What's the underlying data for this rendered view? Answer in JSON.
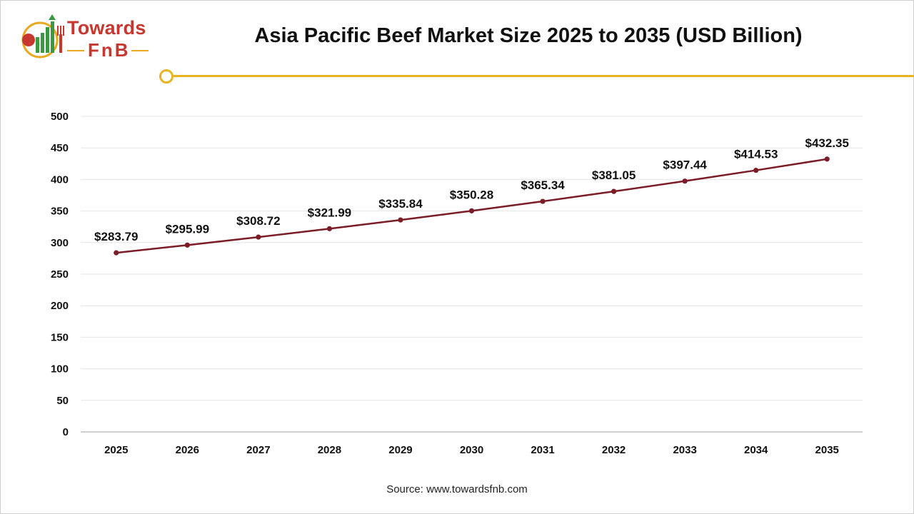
{
  "brand": {
    "name_top": "Towards",
    "name_bottom": "FnB",
    "colors": {
      "primary": "#c7372f",
      "accent": "#e7b521",
      "green": "#3a9a3e"
    }
  },
  "title": "Asia Pacific Beef Market Size 2025 to 2035 (USD Billion)",
  "source": "Source: www.towardsfnb.com",
  "chart_data": {
    "type": "line",
    "title": "Asia Pacific Beef Market Size 2025 to 2035 (USD Billion)",
    "xlabel": "",
    "ylabel": "",
    "categories": [
      "2025",
      "2026",
      "2027",
      "2028",
      "2029",
      "2030",
      "2031",
      "2032",
      "2033",
      "2034",
      "2035"
    ],
    "series": [
      {
        "values": [
          283.79,
          295.99,
          308.72,
          321.99,
          335.84,
          350.28,
          365.34,
          381.05,
          397.44,
          414.53,
          432.35
        ],
        "labels": [
          "$283.79",
          "$295.99",
          "$308.72",
          "$321.99",
          "$335.84",
          "$350.28",
          "$365.34",
          "$381.05",
          "$397.44",
          "$414.53",
          "$432.35"
        ],
        "color": "#7b1c26"
      }
    ],
    "ylim": [
      0,
      500
    ],
    "yticks": [
      0,
      50,
      100,
      150,
      200,
      250,
      300,
      350,
      400,
      450,
      500
    ],
    "grid": true,
    "legend": "none"
  }
}
